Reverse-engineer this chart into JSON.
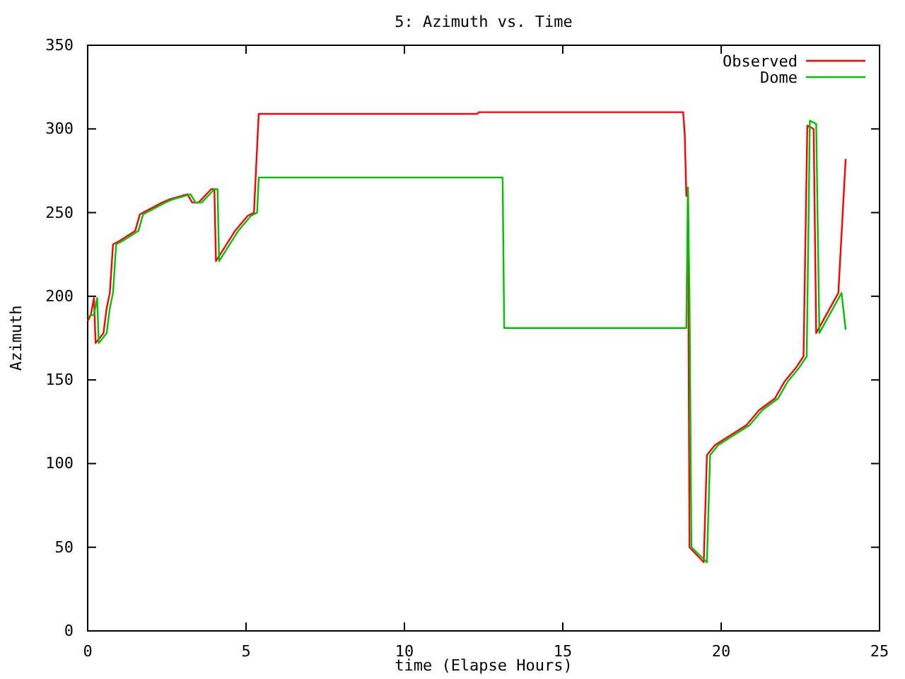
{
  "chart_data": {
    "type": "line",
    "title": "5: Azimuth vs. Time",
    "xlabel": "time (Elapse Hours)",
    "ylabel": "Azimuth",
    "xlim": [
      0,
      25
    ],
    "ylim": [
      0,
      350
    ],
    "xticks": [
      0,
      5,
      10,
      15,
      20,
      25
    ],
    "yticks": [
      0,
      50,
      100,
      150,
      200,
      250,
      300,
      350
    ],
    "grid": false,
    "legend": "top right",
    "line_style": "solid",
    "marker": "none",
    "series": [
      {
        "name": "Observed",
        "color": "#ff0000",
        "x": [
          0,
          0.1,
          0.2,
          0.25,
          0.5,
          0.6,
          0.7,
          0.8,
          1.0,
          1.5,
          1.65,
          1.95,
          2.35,
          2.6,
          3.15,
          3.3,
          3.5,
          3.9,
          4.0,
          4.05,
          4.65,
          5.05,
          5.25,
          5.4,
          12.3,
          12.35,
          18.8,
          18.85,
          18.9,
          18.95,
          19.0,
          19.45,
          19.55,
          19.8,
          20.3,
          20.8,
          21.2,
          21.7,
          22.0,
          22.35,
          22.6,
          22.72,
          22.92,
          23.0,
          23.7,
          23.93
        ],
        "values": [
          185,
          189,
          199,
          172,
          178,
          193,
          202,
          231,
          233,
          239,
          249,
          252,
          256,
          258,
          261,
          256,
          256,
          264,
          264,
          221,
          239,
          248,
          250,
          309,
          309,
          310,
          310,
          297,
          260,
          265,
          50,
          41,
          105,
          111,
          117,
          123,
          132,
          139,
          149,
          157,
          164,
          302,
          300,
          178,
          202,
          282
        ]
      },
      {
        "name": "Dome",
        "color": "#00c000",
        "x": [
          0,
          0.2,
          0.3,
          0.35,
          0.6,
          0.7,
          0.8,
          0.9,
          1.1,
          1.6,
          1.75,
          2.05,
          2.45,
          2.7,
          3.25,
          3.4,
          3.6,
          4.0,
          4.1,
          4.15,
          4.75,
          5.15,
          5.35,
          5.4,
          13.1,
          13.15,
          18.9,
          18.95,
          19.0,
          19.06,
          19.55,
          19.65,
          19.9,
          20.4,
          20.9,
          21.3,
          21.8,
          22.1,
          22.45,
          22.7,
          22.8,
          23.0,
          23.1,
          23.8,
          23.93
        ],
        "values": [
          188,
          189,
          199,
          172,
          178,
          193,
          202,
          231,
          233,
          239,
          249,
          252,
          256,
          258,
          261,
          256,
          256,
          264,
          264,
          221,
          239,
          248,
          250,
          271,
          271,
          181,
          181,
          265,
          200,
          50,
          41,
          105,
          111,
          117,
          123,
          132,
          139,
          149,
          157,
          164,
          305,
          303,
          178,
          202,
          180
        ]
      }
    ]
  }
}
